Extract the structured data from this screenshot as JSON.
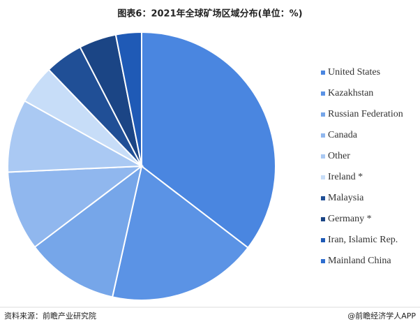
{
  "chart_data": {
    "type": "pie",
    "title": "图表6：2021年全球矿场区域分布(单位：%)",
    "categories": [
      "United States",
      "Kazakhstan",
      "Russian Federation",
      "Canada",
      "Other",
      "Ireland *",
      "Malaysia",
      "Germany *",
      "Iran, Islamic Rep.",
      "Mainland China"
    ],
    "values": [
      35.4,
      18.1,
      11.2,
      9.6,
      8.8,
      4.7,
      4.6,
      4.5,
      3.1,
      0
    ],
    "colors": [
      "#4a86e0",
      "#5b93e5",
      "#76a6e9",
      "#90b7ee",
      "#aac9f3",
      "#c7ddf8",
      "#204f96",
      "#1b4585",
      "#1f5ab6",
      "#2f6ed0"
    ],
    "legend": "right",
    "source": "资料来源：前瞻产业研究院",
    "credit": "@前瞻经济学人APP"
  }
}
